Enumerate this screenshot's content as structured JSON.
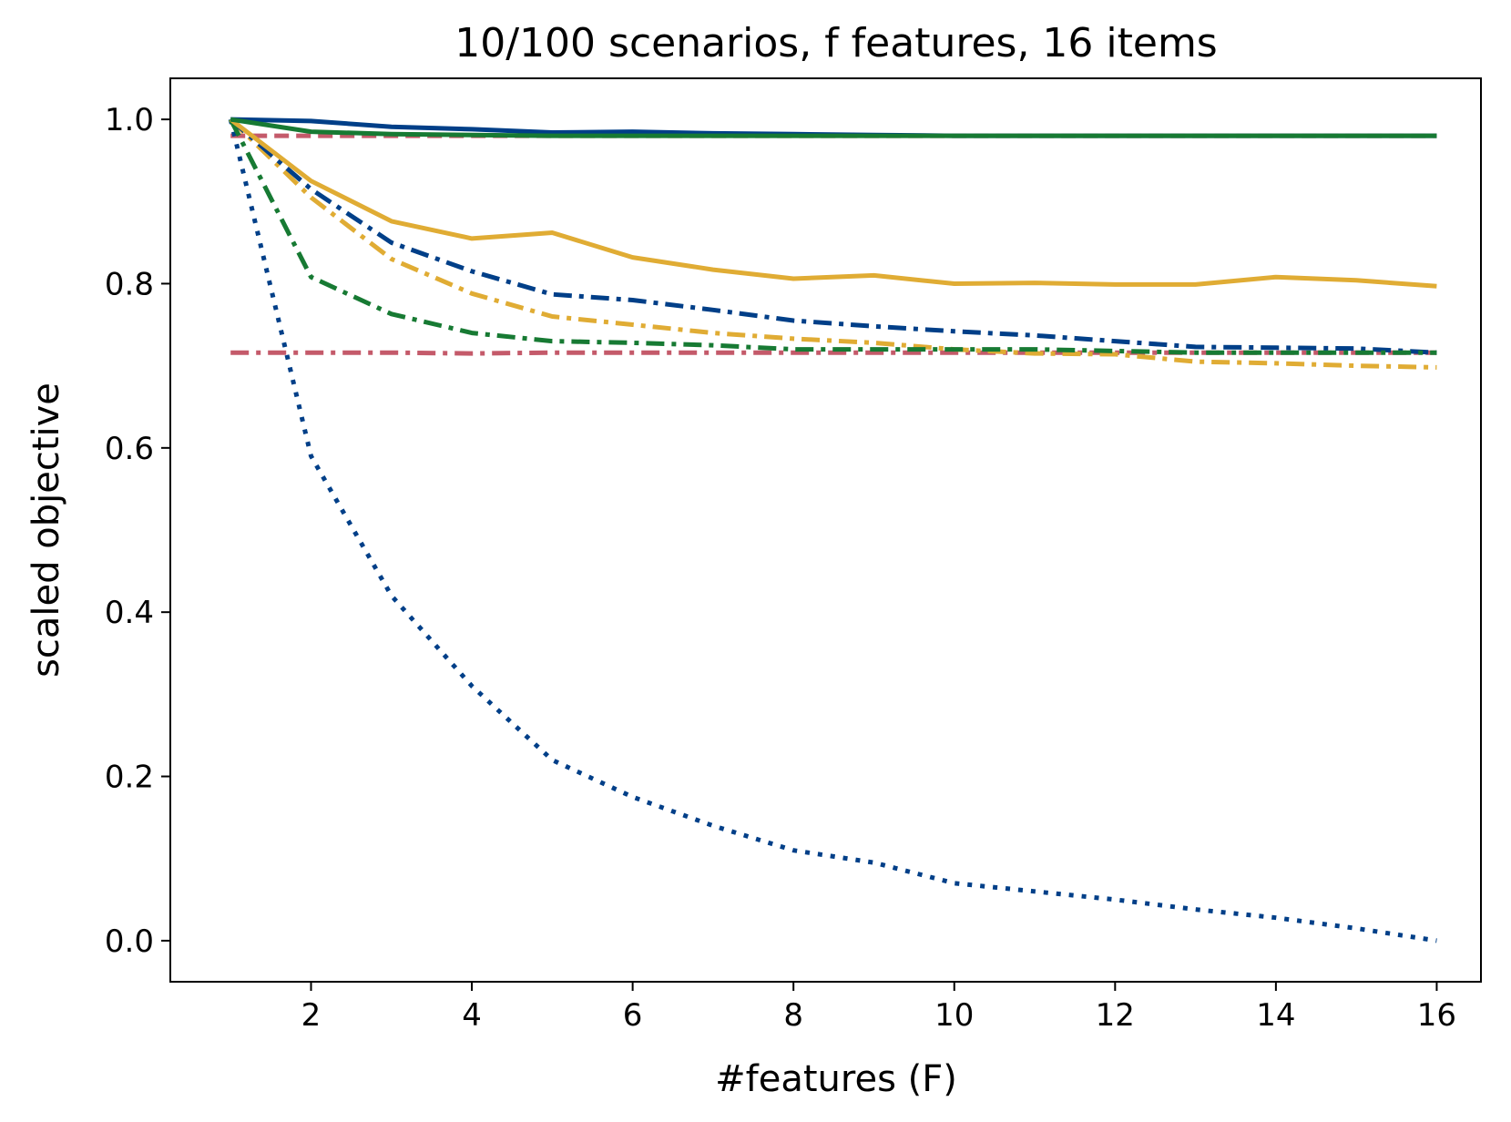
{
  "chart_data": {
    "type": "line",
    "title": "10/100 scenarios, f features, 16 items",
    "xlabel": "#features (F)",
    "ylabel": "scaled objective",
    "xlim": [
      0.25,
      16.55
    ],
    "ylim": [
      -0.05,
      1.05
    ],
    "xticks": [
      2,
      4,
      6,
      8,
      10,
      12,
      14,
      16
    ],
    "yticks": [
      0.0,
      0.2,
      0.4,
      0.6,
      0.8,
      1.0
    ],
    "xtick_labels": [
      "2",
      "4",
      "6",
      "8",
      "10",
      "12",
      "14",
      "16"
    ],
    "ytick_labels": [
      "0.0",
      "0.2",
      "0.4",
      "0.6",
      "0.8",
      "1.0"
    ],
    "grid": false,
    "x": [
      1,
      2,
      3,
      4,
      5,
      6,
      7,
      8,
      9,
      10,
      11,
      12,
      13,
      14,
      15,
      16
    ],
    "series": [
      {
        "color": "#c45a6a",
        "style": "dashed",
        "values": [
          0.98,
          0.98,
          0.98,
          0.98,
          0.98,
          0.98,
          0.98,
          0.98,
          0.98,
          0.98,
          0.98,
          0.98,
          0.98,
          0.98,
          0.98,
          0.98
        ]
      },
      {
        "color": "#c45a6a",
        "style": "dashdot",
        "values": [
          0.716,
          0.716,
          0.716,
          0.715,
          0.716,
          0.716,
          0.716,
          0.716,
          0.716,
          0.716,
          0.716,
          0.716,
          0.716,
          0.716,
          0.716,
          0.716
        ]
      },
      {
        "color": "#003f88",
        "style": "dotted",
        "values": [
          1.0,
          0.59,
          0.42,
          0.31,
          0.22,
          0.175,
          0.14,
          0.11,
          0.095,
          0.07,
          0.06,
          0.05,
          0.038,
          0.028,
          0.015,
          0.0
        ]
      },
      {
        "color": "#e0ac34",
        "style": "dashdot",
        "values": [
          1.0,
          0.905,
          0.83,
          0.788,
          0.76,
          0.75,
          0.74,
          0.733,
          0.728,
          0.72,
          0.715,
          0.714,
          0.705,
          0.703,
          0.7,
          0.698
        ]
      },
      {
        "color": "#003f88",
        "style": "dashdot",
        "values": [
          1.0,
          0.915,
          0.85,
          0.815,
          0.787,
          0.78,
          0.768,
          0.755,
          0.748,
          0.742,
          0.737,
          0.73,
          0.723,
          0.722,
          0.721,
          0.716
        ]
      },
      {
        "color": "#177a33",
        "style": "dashdot",
        "values": [
          1.0,
          0.808,
          0.763,
          0.74,
          0.73,
          0.728,
          0.725,
          0.72,
          0.72,
          0.72,
          0.72,
          0.718,
          0.716,
          0.716,
          0.716,
          0.716
        ]
      },
      {
        "color": "#e0ac34",
        "style": "solid",
        "values": [
          1.0,
          0.925,
          0.876,
          0.855,
          0.862,
          0.832,
          0.817,
          0.806,
          0.81,
          0.8,
          0.801,
          0.799,
          0.799,
          0.808,
          0.804,
          0.797
        ]
      },
      {
        "color": "#003f88",
        "style": "solid",
        "values": [
          1.0,
          0.998,
          0.991,
          0.988,
          0.984,
          0.985,
          0.983,
          0.982,
          0.981,
          0.98,
          0.98,
          0.98,
          0.98,
          0.98,
          0.98,
          0.98
        ]
      },
      {
        "color": "#177a33",
        "style": "solid",
        "values": [
          1.0,
          0.985,
          0.982,
          0.981,
          0.98,
          0.98,
          0.98,
          0.98,
          0.98,
          0.98,
          0.98,
          0.98,
          0.98,
          0.98,
          0.98,
          0.98
        ]
      }
    ]
  }
}
